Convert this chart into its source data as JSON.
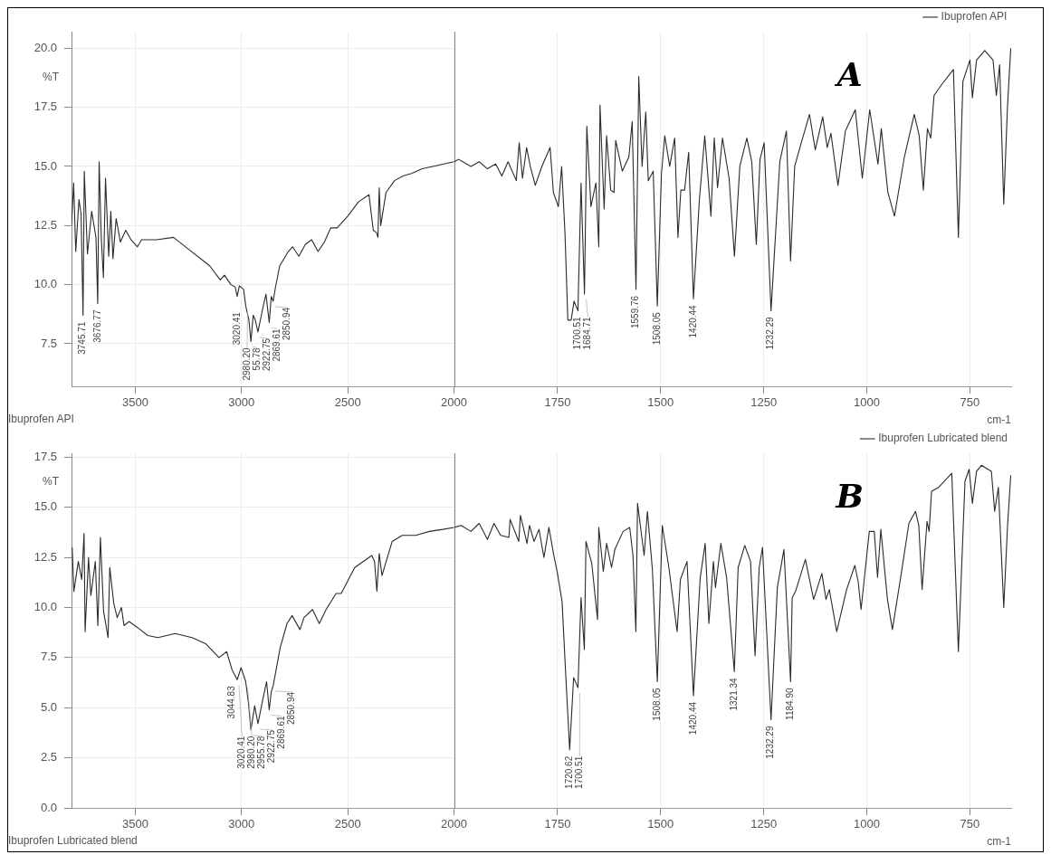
{
  "chart_data": [
    {
      "type": "line",
      "title": "Ibuprofen API",
      "ylabel": "%T",
      "grid": true,
      "xlim": [
        3800,
        2000
      ],
      "xticks": [
        3500,
        3000,
        2500,
        2000
      ],
      "ylim": [
        5.7,
        20.7
      ],
      "yticks": [
        7.5,
        {
          "value": 10,
          "label": "10.0"
        },
        12.5,
        {
          "value": 15,
          "label": "15.0"
        },
        17.5,
        {
          "value": 20,
          "label": "20.0"
        }
      ],
      "annotations": [
        {
          "text": "3745.71",
          "x": 3745.71,
          "y": 8.7
        },
        {
          "text": "3676.77",
          "x": 3676.77,
          "y": 9.2
        },
        {
          "text": "3020.41",
          "x": 3020.41,
          "y": 9.5
        },
        {
          "text": "2980.20",
          "x": 2980.2,
          "y": 9.1
        },
        {
          "text": "55.78",
          "x": 2955.78,
          "y": 7.6
        },
        {
          "text": "2922.75",
          "x": 2922.75,
          "y": 8.0
        },
        {
          "text": "2869.61",
          "x": 2869.61,
          "y": 8.4
        },
        {
          "text": "2850.94",
          "x": 2850.94,
          "y": 9.3
        }
      ],
      "series": [
        {
          "color": "#2b2b2b",
          "x": [
            3800,
            3790,
            3780,
            3765,
            3755,
            3745.71,
            3740,
            3725,
            3705,
            3685,
            3676.77,
            3670,
            3660,
            3650,
            3640,
            3625,
            3615,
            3605,
            3590,
            3570,
            3545,
            3520,
            3490,
            3470,
            3400,
            3320,
            3250,
            3150,
            3100,
            3080,
            3050,
            3030,
            3020.41,
            3010,
            2990,
            2980.2,
            2965,
            2955.78,
            2945,
            2935,
            2922.75,
            2900,
            2885,
            2869.61,
            2860,
            2850.94,
            2840,
            2820,
            2780,
            2760,
            2730,
            2700,
            2670,
            2640,
            2610,
            2580,
            2550,
            2500,
            2450,
            2400,
            2380,
            2365,
            2358,
            2352,
            2345,
            2320,
            2280,
            2240,
            2200,
            2150,
            2100,
            2000
          ],
          "values": [
            12.5,
            14.3,
            11.4,
            13.6,
            13.0,
            8.7,
            14.8,
            11.3,
            13.1,
            12.0,
            9.2,
            15.2,
            12.0,
            10.3,
            14.5,
            11.2,
            13.1,
            11.1,
            12.8,
            11.8,
            12.3,
            11.9,
            11.6,
            11.9,
            11.9,
            12.0,
            11.5,
            10.8,
            10.2,
            10.4,
            10.0,
            9.9,
            9.5,
            9.95,
            9.8,
            9.1,
            8.5,
            7.6,
            8.7,
            8.5,
            8.0,
            9.0,
            9.6,
            8.4,
            9.5,
            9.3,
            9.9,
            10.8,
            11.4,
            11.6,
            11.2,
            11.7,
            11.9,
            11.4,
            11.8,
            12.4,
            12.4,
            12.9,
            13.5,
            13.8,
            12.3,
            12.2,
            12.0,
            14.1,
            12.5,
            13.9,
            14.4,
            14.6,
            14.7,
            14.9,
            15.0,
            15.2
          ]
        }
      ]
    },
    {
      "type": "line",
      "xlabel": "cm-1",
      "legend": "top right",
      "grid": "x",
      "tick_labels": "x",
      "xlim": [
        2000,
        650
      ],
      "xticks": [
        1750,
        1500,
        1250,
        1000,
        750
      ],
      "ylim": [
        5.7,
        20.7
      ],
      "annotations": [
        "A",
        {
          "text": "1700.51",
          "x": 1700.51,
          "y": 8.9
        },
        {
          "text": "1684.71",
          "x": 1684.71,
          "y": 9.6
        },
        {
          "text": "1559.76",
          "x": 1559.76,
          "y": 9.8
        },
        {
          "text": "1508.05",
          "x": 1508.05,
          "y": 9.1
        },
        {
          "text": "1420.44",
          "x": 1420.44,
          "y": 9.4
        },
        {
          "text": "1232.29",
          "x": 1232.29,
          "y": 8.9
        }
      ],
      "series": [
        {
          "name": "Ibuprofen API",
          "color": "#2b2b2b",
          "x": [
            2000,
            1990,
            1960,
            1940,
            1920,
            1900,
            1885,
            1870,
            1850,
            1843,
            1835,
            1825,
            1816,
            1804,
            1788,
            1768,
            1760,
            1748,
            1740,
            1732,
            1725,
            1717,
            1710,
            1700.51,
            1693,
            1684.71,
            1679,
            1669,
            1657,
            1650,
            1647,
            1637,
            1631,
            1621,
            1613,
            1609,
            1593,
            1577,
            1569,
            1559.76,
            1553,
            1545,
            1536,
            1530,
            1518,
            1508.05,
            1498,
            1490,
            1478,
            1466,
            1458,
            1451,
            1442,
            1432,
            1420.44,
            1406,
            1393,
            1378,
            1370,
            1362,
            1350,
            1334,
            1321,
            1308,
            1291,
            1279,
            1268,
            1259,
            1249,
            1232.29,
            1211,
            1195,
            1185,
            1175,
            1159,
            1139,
            1125,
            1107,
            1096,
            1087,
            1070,
            1052,
            1028,
            1011,
            993,
            973,
            965,
            949,
            933,
            909,
            885,
            873,
            863,
            853,
            845,
            837,
            817,
            790,
            778,
            767,
            750,
            744,
            734,
            714,
            694,
            686,
            678,
            668,
            659,
            651
          ],
          "values": [
            15.2,
            15.3,
            15.0,
            15.2,
            14.9,
            15.1,
            14.6,
            15.2,
            14.4,
            16.0,
            14.5,
            15.8,
            15.0,
            14.2,
            15.0,
            15.8,
            13.9,
            13.3,
            15.0,
            12.2,
            8.5,
            8.5,
            9.3,
            8.9,
            14.3,
            9.6,
            16.7,
            13.3,
            14.3,
            11.6,
            17.6,
            13.2,
            16.3,
            14.0,
            13.9,
            16.1,
            14.8,
            15.4,
            16.9,
            9.8,
            18.8,
            15.0,
            17.3,
            14.4,
            14.8,
            9.1,
            14.7,
            16.3,
            15.0,
            16.2,
            12.0,
            14.0,
            14.0,
            15.6,
            9.4,
            13.6,
            16.3,
            12.9,
            16.2,
            14.1,
            16.2,
            14.5,
            11.2,
            15.0,
            16.2,
            15.2,
            11.7,
            15.3,
            16.0,
            8.9,
            15.2,
            16.5,
            11.0,
            15.0,
            16.0,
            17.2,
            15.7,
            17.1,
            15.8,
            16.4,
            14.2,
            16.5,
            17.4,
            14.5,
            17.4,
            15.1,
            16.6,
            13.9,
            12.9,
            15.4,
            17.2,
            16.3,
            14.0,
            16.6,
            16.2,
            18.0,
            18.5,
            19.1,
            12.0,
            18.6,
            19.5,
            17.9,
            19.5,
            19.9,
            19.5,
            18.0,
            19.3,
            13.4,
            17.5,
            20.0
          ]
        }
      ]
    },
    {
      "type": "line",
      "title": "Ibuprofen Lubricated blend",
      "ylabel": "%T",
      "grid": true,
      "xlim": [
        3800,
        2000
      ],
      "xticks": [
        3500,
        3000,
        2500,
        2000
      ],
      "ylim": [
        0,
        17.7
      ],
      "yticks": [
        {
          "value": 0,
          "label": "0.0"
        },
        2.5,
        {
          "value": 5,
          "label": "5.0"
        },
        7.5,
        {
          "value": 10,
          "label": "10.0"
        },
        12.5,
        {
          "value": 15,
          "label": "15.0"
        },
        17.5
      ],
      "annotations": [
        {
          "text": "3044.83",
          "x": 3044.83,
          "y": 6.9
        },
        {
          "text": "3020.41",
          "x": 3020.41,
          "y": 6.4
        },
        {
          "text": "2980.20",
          "x": 2980.2,
          "y": 6.3
        },
        {
          "text": "2955.78",
          "x": 2955.78,
          "y": 3.9
        },
        {
          "text": "2922.75",
          "x": 2922.75,
          "y": 4.2
        },
        {
          "text": "2869.61",
          "x": 2869.61,
          "y": 4.9
        },
        {
          "text": "2850.94",
          "x": 2850.94,
          "y": 6.1
        }
      ],
      "series": [
        {
          "color": "#2b2b2b",
          "x": [
            3797,
            3789,
            3768,
            3752,
            3741,
            3736,
            3720,
            3709,
            3688,
            3676,
            3664,
            3649,
            3628,
            3620,
            3601,
            3585,
            3565,
            3553,
            3529,
            3489,
            3441,
            3393,
            3313,
            3233,
            3169,
            3106,
            3070,
            3044.83,
            3020.41,
            3002,
            2980.2,
            2967,
            2955.78,
            2938,
            2922.75,
            2898,
            2882,
            2869.61,
            2860,
            2850.94,
            2818,
            2786,
            2762,
            2725,
            2706,
            2666,
            2634,
            2602,
            2555,
            2531,
            2467,
            2387,
            2374,
            2363,
            2352,
            2339,
            2291,
            2244,
            2180,
            2116,
            2052,
            2000
          ],
          "values": [
            13.0,
            10.8,
            12.3,
            11.4,
            13.7,
            8.8,
            12.5,
            10.6,
            12.3,
            9.1,
            13.5,
            9.8,
            8.5,
            12.0,
            10.2,
            9.5,
            10.0,
            9.1,
            9.3,
            9.0,
            8.6,
            8.5,
            8.7,
            8.5,
            8.2,
            7.5,
            7.8,
            6.9,
            6.4,
            7.0,
            6.3,
            5.2,
            3.9,
            5.1,
            4.2,
            5.5,
            6.3,
            4.9,
            5.8,
            6.1,
            8.0,
            9.2,
            9.6,
            8.9,
            9.5,
            9.9,
            9.2,
            9.9,
            10.7,
            10.7,
            12.0,
            12.6,
            12.3,
            10.8,
            12.7,
            11.6,
            13.3,
            13.6,
            13.6,
            13.8,
            13.9,
            14.0
          ]
        }
      ]
    },
    {
      "type": "line",
      "xlabel": "cm-1",
      "legend": "top right",
      "grid": "x",
      "tick_labels": "x",
      "xlim": [
        2000,
        650
      ],
      "xticks": [
        1750,
        1500,
        1250,
        1000,
        750
      ],
      "ylim": [
        0,
        17.7
      ],
      "annotations": [
        "B",
        {
          "text": "1720.62",
          "x": 1720.62,
          "y": 2.9
        },
        {
          "text": "1700.51",
          "x": 1700.51,
          "y": 6.0
        },
        {
          "text": "1508.05",
          "x": 1508.05,
          "y": 6.3
        },
        {
          "text": "1420.44",
          "x": 1420.44,
          "y": 5.6
        },
        {
          "text": "1321.34",
          "x": 1321.34,
          "y": 6.8
        },
        {
          "text": "1232.29",
          "x": 1232.29,
          "y": 4.4
        },
        {
          "text": "1184.90",
          "x": 1184.9,
          "y": 6.3
        }
      ],
      "series": [
        {
          "name": "Ibuprofen Lubricated blend",
          "color": "#2b2b2b",
          "x": [
            2000,
            1984,
            1960,
            1940,
            1920,
            1904,
            1888,
            1868,
            1865,
            1844,
            1840,
            1824,
            1818,
            1807,
            1795,
            1783,
            1771,
            1759,
            1751,
            1739,
            1731,
            1720.62,
            1711,
            1700.51,
            1693,
            1685,
            1681,
            1667,
            1653,
            1650,
            1639,
            1631,
            1619,
            1611,
            1591,
            1575,
            1567,
            1560,
            1556,
            1540,
            1532,
            1520,
            1508.05,
            1496,
            1480,
            1472,
            1460,
            1452,
            1436,
            1420.44,
            1404,
            1392,
            1383,
            1372,
            1367,
            1354,
            1340,
            1321.34,
            1312,
            1296,
            1282,
            1271,
            1261,
            1253,
            1232.29,
            1217,
            1201,
            1184.9,
            1181,
            1173,
            1149,
            1129,
            1109,
            1099,
            1091,
            1073,
            1049,
            1029,
            1021,
            1014,
            994,
            982,
            974,
            966,
            950,
            938,
            918,
            898,
            882,
            874,
            866,
            854,
            849,
            843,
            826,
            794,
            778,
            762,
            752,
            744,
            734,
            722,
            698,
            690,
            681,
            668,
            659,
            651
          ],
          "values": [
            14.0,
            14.1,
            13.8,
            14.2,
            13.4,
            14.2,
            13.6,
            13.5,
            14.4,
            13.3,
            14.6,
            13.2,
            14.1,
            13.3,
            13.9,
            12.5,
            14.0,
            12.6,
            11.8,
            10.3,
            7.0,
            2.9,
            6.5,
            6.0,
            10.5,
            7.9,
            13.3,
            12.2,
            9.4,
            14.0,
            11.8,
            13.2,
            12.0,
            12.9,
            13.8,
            14.0,
            12.6,
            8.8,
            15.2,
            12.6,
            14.8,
            11.9,
            6.3,
            14.1,
            12.0,
            10.7,
            8.8,
            11.4,
            12.3,
            5.6,
            11.5,
            13.2,
            9.2,
            12.3,
            11.0,
            13.2,
            11.5,
            6.8,
            12.0,
            13.1,
            12.3,
            7.6,
            12.0,
            13.0,
            4.4,
            11.0,
            12.9,
            6.3,
            10.5,
            10.8,
            12.4,
            10.4,
            11.7,
            10.4,
            10.9,
            8.8,
            10.9,
            12.1,
            11.3,
            9.9,
            13.8,
            13.8,
            11.5,
            13.9,
            10.4,
            8.9,
            11.5,
            14.2,
            14.8,
            14.1,
            10.9,
            14.3,
            13.8,
            15.8,
            16.0,
            16.7,
            7.8,
            16.3,
            16.9,
            15.2,
            16.8,
            17.1,
            16.8,
            14.8,
            16.0,
            10.0,
            14.0,
            16.6
          ]
        }
      ]
    }
  ]
}
